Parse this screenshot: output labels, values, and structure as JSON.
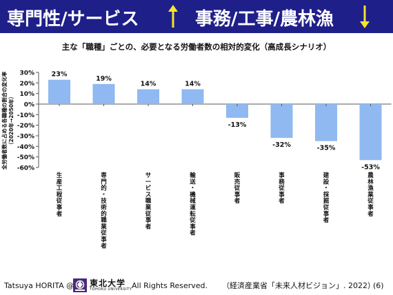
{
  "header": {
    "title_left": "専門性/サービス",
    "title_right": "事務/工事/農林漁",
    "up_arrow_color": "#f5e62a",
    "down_arrow_color": "#f5e62a",
    "background_color": "#1f1f8a"
  },
  "chart_data": {
    "type": "bar",
    "title": "主な「職種」ごとの、必要となる労働者数の相対的変化（高成長シナリオ）",
    "ylabel_line1": "全労働者数に占める各職種の割合の変化率",
    "ylabel_line2": "（2020年→2050年）",
    "categories": [
      "生産工程従事者",
      "専門的・技術的職業従事者",
      "サービス職業従事者",
      "輸送・機械運転従事者",
      "販売従事者",
      "事務従事者",
      "建設・採掘従事者",
      "農林漁業従事者"
    ],
    "values": [
      23,
      19,
      14,
      14,
      -13,
      -32,
      -35,
      -53
    ],
    "data_labels": [
      "23%",
      "19%",
      "14%",
      "14%",
      "-13%",
      "-32%",
      "-35%",
      "-53%"
    ],
    "y_ticks": [
      30,
      20,
      10,
      0,
      -10,
      -20,
      -30,
      -40,
      -50,
      -60
    ],
    "y_tick_labels": [
      "30%",
      "20%",
      "10%",
      "0%",
      "-10%",
      "-20%",
      "-30%",
      "-40%",
      "-50%",
      "-60%"
    ],
    "ylim": [
      -60,
      30
    ],
    "bar_color": "#8fb9f0",
    "grid": false,
    "legend": "none"
  },
  "footer": {
    "author": "Tatsuya HORITA @",
    "university": "東北大学",
    "university_en": "TOHOKU UNIVERSITY",
    "rights": "All Rights Reserved.",
    "source": "（経済産業省「未来人材ビジョン」. 2022）",
    "page": "(6)",
    "logo_icon": "tohoku-university-logo-icon"
  }
}
